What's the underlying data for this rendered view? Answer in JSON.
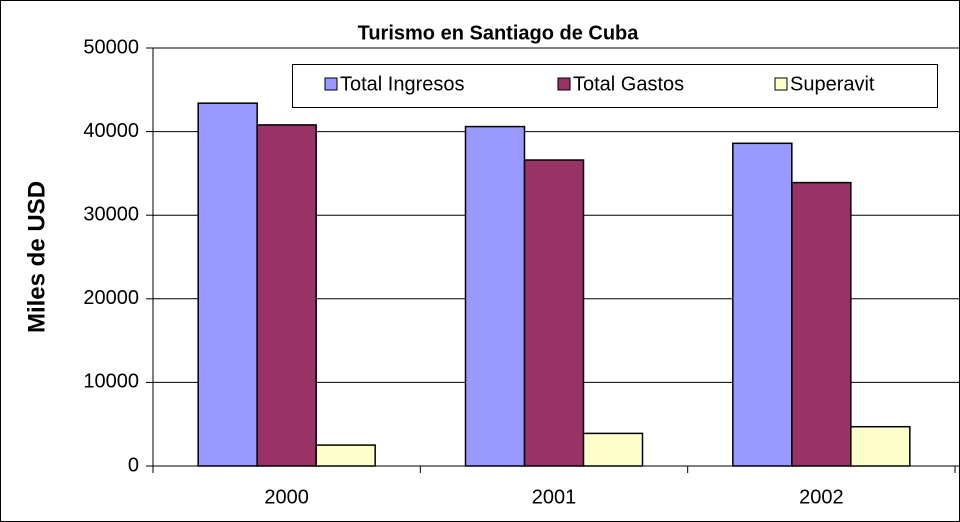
{
  "chart_data": {
    "type": "bar",
    "title": "Turismo en Santiago de Cuba",
    "y_label": "Miles de USD",
    "categories": [
      "2000",
      "2001",
      "2002"
    ],
    "series": [
      {
        "name": "Total Ingresos",
        "color": "#9999ff",
        "values": [
          43400,
          40600,
          38600
        ]
      },
      {
        "name": "Total Gastos",
        "color": "#993366",
        "values": [
          40800,
          36600,
          33900
        ]
      },
      {
        "name": "Superavit",
        "color": "#ffffcc",
        "values": [
          2500,
          3900,
          4700
        ]
      }
    ],
    "ylim": [
      0,
      50000
    ],
    "yticks": [
      0,
      10000,
      20000,
      30000,
      40000,
      50000
    ],
    "grid": true,
    "legend": "top"
  }
}
